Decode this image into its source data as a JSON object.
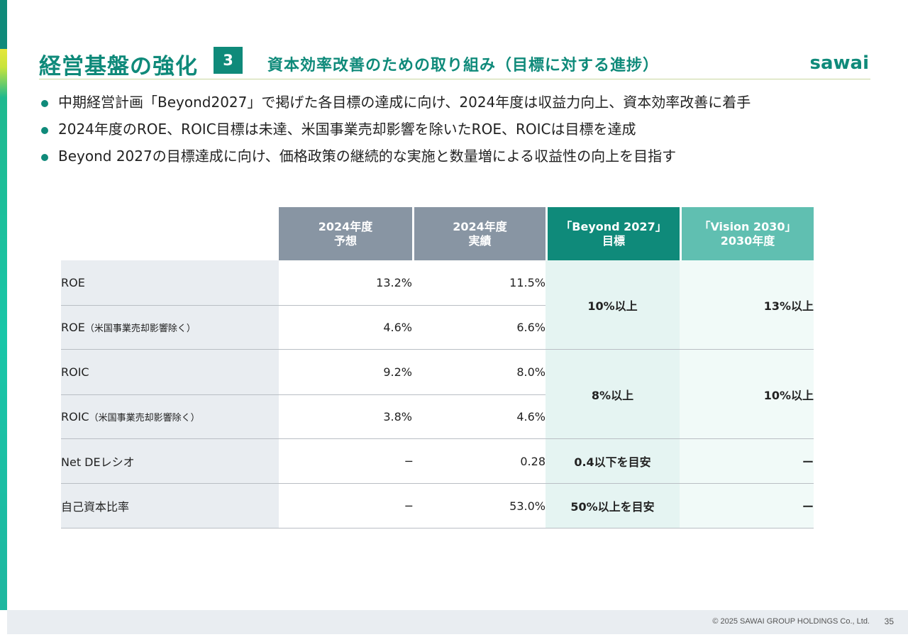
{
  "header": {
    "title": "経営基盤の強化",
    "section_number": "3",
    "subtitle": "資本効率改善のための取り組み（目標に対する進捗）",
    "logo_text": "sawai"
  },
  "bullets": [
    "中期経営計画「Beyond2027」で掲げた各目標の達成に向け、2024年度は収益力向上、資本効率改善に着手",
    "2024年度のROE、ROIC目標は未達、米国事業売却影響を除いたROE、ROICは目標を達成",
    "Beyond 2027の目標達成に向け、価格政策の継続的な実施と数量増による収益性の向上を目指す"
  ],
  "table": {
    "columns": [
      {
        "line1": "2024年度",
        "line2": "予想"
      },
      {
        "line1": "2024年度",
        "line2": "実績"
      },
      {
        "line1": "「Beyond 2027」",
        "line2": "目標"
      },
      {
        "line1": "「Vision 2030」",
        "line2": "2030年度"
      }
    ],
    "rows": [
      {
        "label": "ROE",
        "label_note": "",
        "forecast": "13.2%",
        "actual": "11.5%"
      },
      {
        "label": "ROE",
        "label_note": "（米国事業売却影響除く）",
        "forecast": "4.6%",
        "actual": "6.6%"
      },
      {
        "label": "ROIC",
        "label_note": "",
        "forecast": "9.2%",
        "actual": "8.0%"
      },
      {
        "label": "ROIC",
        "label_note": "（米国事業売却影響除く）",
        "forecast": "3.8%",
        "actual": "4.6%"
      },
      {
        "label": "Net DEレシオ",
        "label_note": "",
        "forecast": "─",
        "actual": "0.28"
      },
      {
        "label": "自己資本比率",
        "label_note": "",
        "forecast": "─",
        "actual": "53.0%"
      }
    ],
    "targets": {
      "roe_beyond": "10%以上",
      "roe_vision": "13%以上",
      "roic_beyond": "8%以上",
      "roic_vision": "10%以上",
      "de_beyond": "0.4以下を目安",
      "de_vision": "ー",
      "equity_beyond": "50%以上を目安",
      "equity_vision": "ー"
    }
  },
  "footer": {
    "copyright": "© 2025 SAWAI GROUP HOLDINGS Co., Ltd.",
    "page": "35"
  },
  "colors": {
    "brand_teal": "#0f8a7a",
    "header_gray": "#8895a3",
    "header_light_teal": "#60bfb1",
    "label_bg": "#e9edf1"
  }
}
